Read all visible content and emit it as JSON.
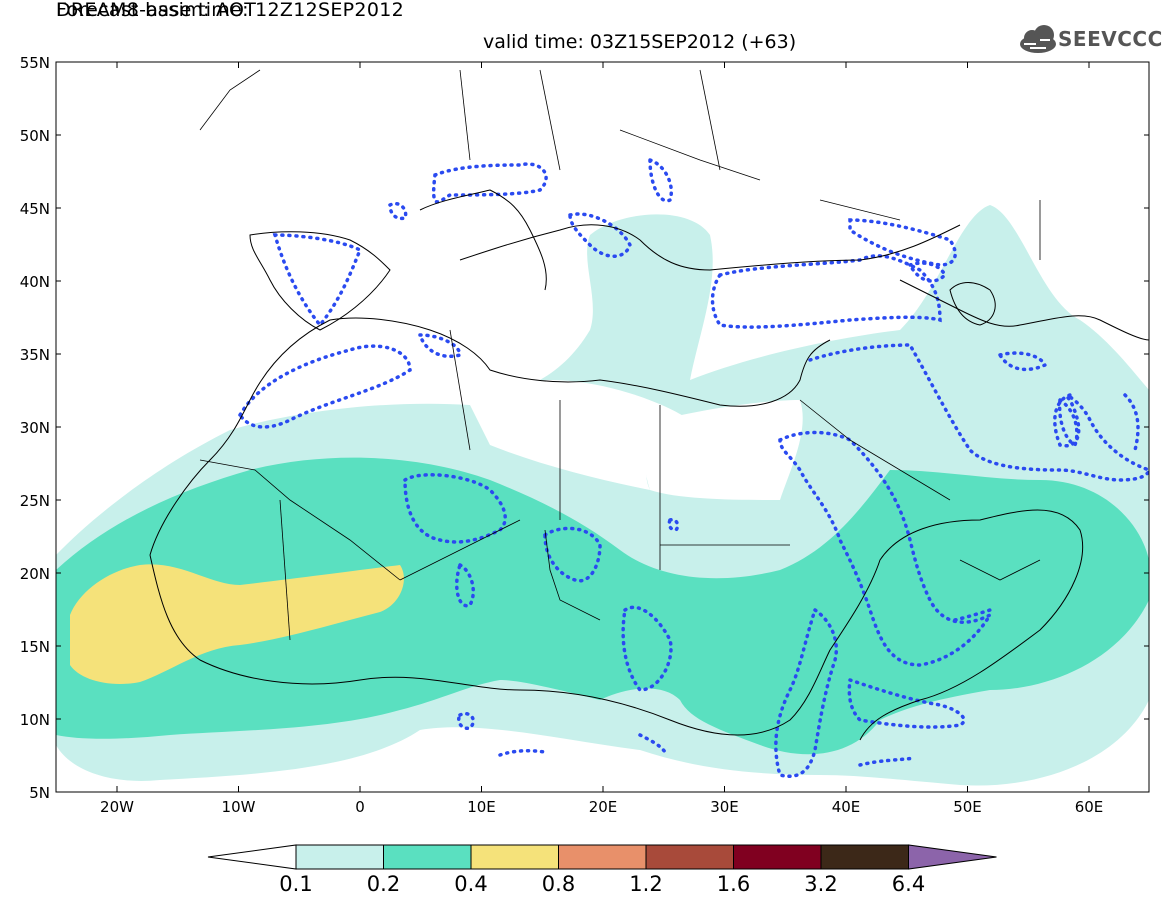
{
  "header": {
    "line1": "DREAM8-assim: AOT",
    "line2": "Forecast base time: 12Z12SEP2012",
    "valid": "valid time: 03Z15SEP2012 (+63)",
    "logo_text": "SEEVCCC",
    "logo_icon": "cloud-icon"
  },
  "map": {
    "lat_labels": [
      "55N",
      "50N",
      "45N",
      "40N",
      "35N",
      "30N",
      "25N",
      "20N",
      "15N",
      "10N",
      "5N"
    ],
    "lon_labels": [
      "20W",
      "10W",
      "0",
      "10E",
      "20E",
      "30E",
      "40E",
      "50E",
      "60E"
    ],
    "colors": {
      "level_1": "#c8f0eb",
      "level_2": "#5ae0c0",
      "level_3": "#f5e27a",
      "contour": "#2a4af0",
      "coast": "#000000"
    }
  },
  "colorbar": {
    "labels": [
      "0.1",
      "0.2",
      "0.4",
      "0.8",
      "1.2",
      "1.6",
      "3.2",
      "6.4"
    ],
    "colors": [
      "#ffffff",
      "#c8f0eb",
      "#5ae0c0",
      "#f5e27a",
      "#e8906a",
      "#a84a3a",
      "#800020",
      "#3c2818",
      "#8c64aa"
    ]
  }
}
